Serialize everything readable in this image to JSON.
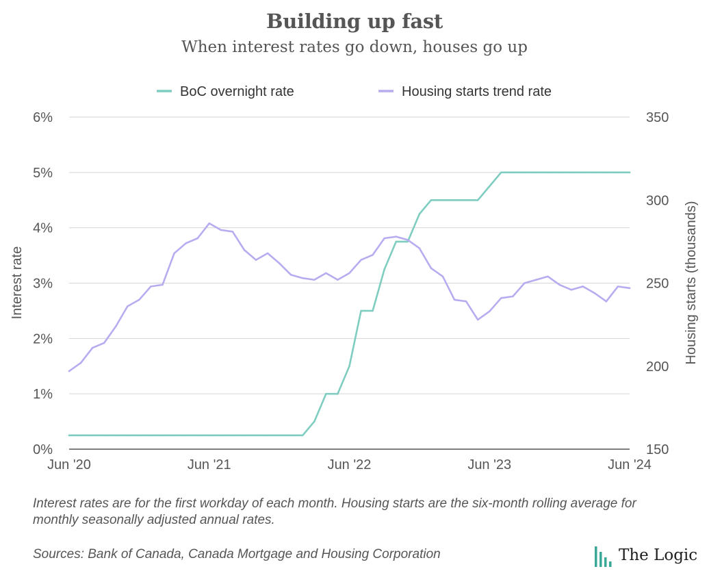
{
  "title": "Building up fast",
  "subtitle": "When interest rates go down, houses go up",
  "note": "Interest rates are for the first workday of each month. Housing starts are the six-month rolling average for monthly seasonally adjusted annual rates.",
  "source": "Sources: Bank of Canada, Canada Mortgage and Housing Corporation",
  "brand": "The Logic",
  "colors": {
    "rate": "#7ecdc0",
    "starts": "#b7acf0",
    "grid": "#d5d5d5",
    "axis": "#333333",
    "text": "#555555"
  },
  "chart_data": {
    "type": "line",
    "title": "Building up fast",
    "subtitle": "When interest rates go down, houses go up",
    "x_start": "Jun 2020",
    "x_ticks": [
      "Jun '20",
      "Jun '21",
      "Jun '22",
      "Jun '23",
      "Jun '24"
    ],
    "ylabel_left": "Interest rate",
    "ylabel_right": "Housing starts (thousands)",
    "y_left_lim": [
      0,
      6
    ],
    "y_left_ticks": [
      "0%",
      "1%",
      "2%",
      "3%",
      "4%",
      "5%",
      "6%"
    ],
    "y_right_lim": [
      150,
      350
    ],
    "y_right_ticks": [
      "150",
      "200",
      "250",
      "300",
      "350"
    ],
    "legend": "top-center",
    "grid": true,
    "series": [
      {
        "name": "BoC overnight rate",
        "axis": "left",
        "x": [
          "2020-06",
          "2020-07",
          "2020-08",
          "2020-09",
          "2020-10",
          "2020-11",
          "2020-12",
          "2021-01",
          "2021-02",
          "2021-03",
          "2021-04",
          "2021-05",
          "2021-06",
          "2021-07",
          "2021-08",
          "2021-09",
          "2021-10",
          "2021-11",
          "2021-12",
          "2022-01",
          "2022-02",
          "2022-03",
          "2022-04",
          "2022-05",
          "2022-06",
          "2022-07",
          "2022-08",
          "2022-09",
          "2022-10",
          "2022-11",
          "2022-12",
          "2023-01",
          "2023-02",
          "2023-03",
          "2023-04",
          "2023-05",
          "2023-06",
          "2023-07",
          "2023-08",
          "2023-09",
          "2023-10",
          "2023-11",
          "2023-12",
          "2024-01",
          "2024-02",
          "2024-03",
          "2024-04",
          "2024-05",
          "2024-06"
        ],
        "values": [
          0.25,
          0.25,
          0.25,
          0.25,
          0.25,
          0.25,
          0.25,
          0.25,
          0.25,
          0.25,
          0.25,
          0.25,
          0.25,
          0.25,
          0.25,
          0.25,
          0.25,
          0.25,
          0.25,
          0.25,
          0.25,
          0.5,
          1.0,
          1.0,
          1.5,
          2.5,
          2.5,
          3.25,
          3.75,
          3.75,
          4.25,
          4.5,
          4.5,
          4.5,
          4.5,
          4.5,
          4.75,
          5.0,
          5.0,
          5.0,
          5.0,
          5.0,
          5.0,
          5.0,
          5.0,
          5.0,
          5.0,
          5.0,
          5.0
        ]
      },
      {
        "name": "Housing starts trend rate",
        "axis": "right",
        "x": [
          "2020-06",
          "2020-07",
          "2020-08",
          "2020-09",
          "2020-10",
          "2020-11",
          "2020-12",
          "2021-01",
          "2021-02",
          "2021-03",
          "2021-04",
          "2021-05",
          "2021-06",
          "2021-07",
          "2021-08",
          "2021-09",
          "2021-10",
          "2021-11",
          "2021-12",
          "2022-01",
          "2022-02",
          "2022-03",
          "2022-04",
          "2022-05",
          "2022-06",
          "2022-07",
          "2022-08",
          "2022-09",
          "2022-10",
          "2022-11",
          "2022-12",
          "2023-01",
          "2023-02",
          "2023-03",
          "2023-04",
          "2023-05",
          "2023-06",
          "2023-07",
          "2023-08",
          "2023-09",
          "2023-10",
          "2023-11",
          "2023-12",
          "2024-01",
          "2024-02",
          "2024-03",
          "2024-04",
          "2024-05",
          "2024-06"
        ],
        "values": [
          197,
          202,
          211,
          214,
          224,
          236,
          240,
          248,
          249,
          268,
          274,
          277,
          286,
          282,
          281,
          270,
          264,
          268,
          262,
          255,
          253,
          252,
          256,
          252,
          256,
          264,
          267,
          277,
          278,
          276,
          271,
          259,
          254,
          240,
          239,
          228,
          233,
          241,
          242,
          250,
          252,
          254,
          249,
          246,
          248,
          244,
          239,
          248,
          247
        ]
      }
    ]
  }
}
